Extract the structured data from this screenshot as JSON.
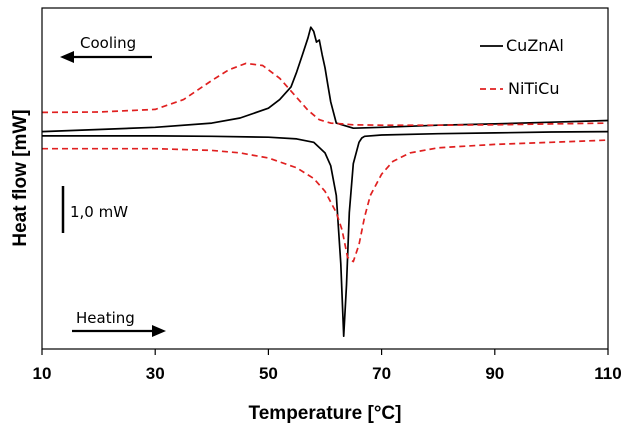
{
  "chart_data": {
    "type": "line",
    "xlabel": "Temperature [°C]",
    "ylabel": "Heat flow [mW]",
    "xlim": [
      10,
      110
    ],
    "x_ticks": [
      "10",
      "30",
      "50",
      "70",
      "90",
      "110"
    ],
    "scale_bar_label": "1,0 mW",
    "legend_position": "top-right",
    "annotations": {
      "cooling": "Cooling",
      "heating": "Heating"
    },
    "series": [
      {
        "name": "CuZnAl",
        "style": "solid",
        "color": "#000000",
        "segments": [
          {
            "label": "Cooling",
            "x": [
              10,
              20,
              30,
              40,
              45,
              50,
              52,
              54,
              55,
              56,
              57,
              57.5,
              58,
              58.5,
              59,
              59.5,
              60,
              60.5,
              61,
              62,
              65,
              70,
              80,
              90,
              100,
              110
            ],
            "y": [
              2.1,
              2.15,
              2.2,
              2.3,
              2.42,
              2.65,
              2.85,
              3.15,
              3.5,
              3.9,
              4.3,
              4.55,
              4.45,
              4.2,
              4.25,
              3.9,
              3.6,
              3.2,
              2.8,
              2.3,
              2.18,
              2.2,
              2.25,
              2.28,
              2.32,
              2.36
            ]
          },
          {
            "label": "Heating",
            "x": [
              10,
              20,
              30,
              40,
              50,
              55,
              58,
              60,
              61,
              62,
              62.8,
              63.3,
              63.8,
              64.3,
              65,
              66,
              66.5,
              67,
              70,
              80,
              90,
              100,
              110
            ],
            "y": [
              2.0,
              2.0,
              2.0,
              1.99,
              1.97,
              1.93,
              1.85,
              1.6,
              1.3,
              0.6,
              -1.0,
              -2.7,
              -1.5,
              0.2,
              1.35,
              1.85,
              1.95,
              1.99,
              2.02,
              2.05,
              2.07,
              2.09,
              2.1
            ]
          }
        ]
      },
      {
        "name": "NiTiCu",
        "style": "dashed",
        "color": "#e02020",
        "segments": [
          {
            "label": "Cooling",
            "x": [
              10,
              20,
              30,
              35,
              40,
              43,
              46,
              49,
              52,
              55,
              57,
              59,
              61,
              63,
              65,
              70,
              80,
              90,
              100,
              110
            ],
            "y": [
              2.55,
              2.56,
              2.62,
              2.85,
              3.3,
              3.55,
              3.7,
              3.65,
              3.35,
              2.9,
              2.6,
              2.38,
              2.3,
              2.28,
              2.26,
              2.25,
              2.25,
              2.26,
              2.28,
              2.3
            ]
          },
          {
            "label": "Heating",
            "x": [
              10,
              20,
              30,
              40,
              45,
              50,
              55,
              58,
              60,
              62,
              63,
              64,
              65,
              66,
              67,
              68,
              70,
              72,
              75,
              80,
              90,
              100,
              110
            ],
            "y": [
              1.7,
              1.7,
              1.7,
              1.66,
              1.6,
              1.48,
              1.25,
              1.0,
              0.7,
              0.2,
              -0.2,
              -0.85,
              -0.95,
              -0.55,
              0.1,
              0.6,
              1.1,
              1.4,
              1.6,
              1.72,
              1.8,
              1.85,
              1.9
            ]
          }
        ]
      }
    ]
  }
}
